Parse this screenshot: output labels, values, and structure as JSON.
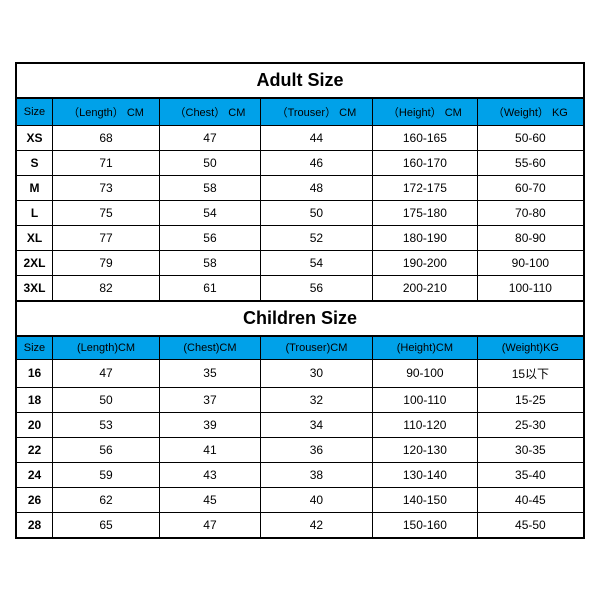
{
  "adult": {
    "title": "Adult Size",
    "header_bg": "#00a1e9",
    "border_color": "#000000",
    "columns": [
      "Size",
      "（Length） CM",
      "（Chest） CM",
      "（Trouser） CM",
      "（Height） CM",
      "（Weight） KG"
    ],
    "rows": [
      [
        "XS",
        "68",
        "47",
        "44",
        "160-165",
        "50-60"
      ],
      [
        "S",
        "71",
        "50",
        "46",
        "160-170",
        "55-60"
      ],
      [
        "M",
        "73",
        "58",
        "48",
        "172-175",
        "60-70"
      ],
      [
        "L",
        "75",
        "54",
        "50",
        "175-180",
        "70-80"
      ],
      [
        "XL",
        "77",
        "56",
        "52",
        "180-190",
        "80-90"
      ],
      [
        "2XL",
        "79",
        "58",
        "54",
        "190-200",
        "90-100"
      ],
      [
        "3XL",
        "82",
        "61",
        "56",
        "200-210",
        "100-110"
      ]
    ]
  },
  "children": {
    "title": "Children Size",
    "header_bg": "#00a1e9",
    "border_color": "#000000",
    "columns": [
      "Size",
      "(Length)CM",
      "(Chest)CM",
      "(Trouser)CM",
      "(Height)CM",
      "(Weight)KG"
    ],
    "rows": [
      [
        "16",
        "47",
        "35",
        "30",
        "90-100",
        "15以下"
      ],
      [
        "18",
        "50",
        "37",
        "32",
        "100-110",
        "15-25"
      ],
      [
        "20",
        "53",
        "39",
        "34",
        "110-120",
        "25-30"
      ],
      [
        "22",
        "56",
        "41",
        "36",
        "120-130",
        "30-35"
      ],
      [
        "24",
        "59",
        "43",
        "38",
        "130-140",
        "35-40"
      ],
      [
        "26",
        "62",
        "45",
        "40",
        "140-150",
        "40-45"
      ],
      [
        "28",
        "65",
        "47",
        "42",
        "150-160",
        "45-50"
      ]
    ]
  }
}
